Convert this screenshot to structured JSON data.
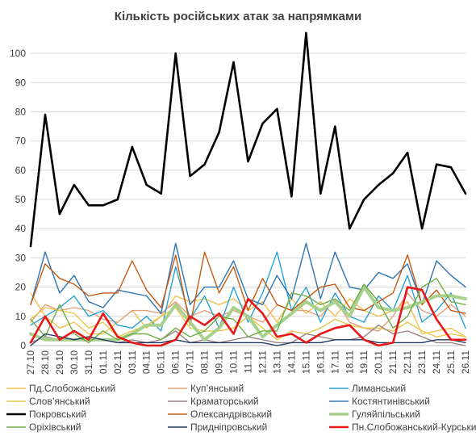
{
  "chart_data": {
    "type": "line",
    "title": "Кількість російських атак за напрямками",
    "xlabel": "",
    "ylabel": "",
    "ylim": [
      0,
      105
    ],
    "yticks": [
      0,
      10,
      20,
      30,
      40,
      50,
      60,
      70,
      80,
      90,
      100
    ],
    "grid": "horizontal",
    "legend_position": "bottom",
    "x": [
      "27.10",
      "28.10",
      "29.10",
      "30.10",
      "31.10",
      "01.11",
      "02.11",
      "03.11",
      "04.11",
      "05.11",
      "06.11",
      "07.11",
      "08.11",
      "09.11",
      "10.11",
      "11.11",
      "12.11",
      "13.11",
      "14.11",
      "15.11",
      "16.11",
      "17.11",
      "18.11",
      "19.11",
      "20.11",
      "21.11",
      "22.11",
      "23.11",
      "24.11",
      "25.11",
      "26.11"
    ],
    "xtick_labels": [
      "27.10",
      "28.10",
      "29.10",
      "30.10",
      "31.10",
      "01.11",
      "02.11",
      "03.11",
      "04.11",
      "05.11",
      "06.11",
      "07.11",
      "08.11",
      "09.11",
      "10.11",
      "11.11",
      "12.11",
      "13.11",
      "14.11",
      "15.11",
      "16.11",
      "17.11",
      "18.11",
      "19.11",
      "20.11",
      "21.11",
      "22.11",
      "23.11",
      "24.11",
      "25.11",
      "26.11"
    ],
    "series": [
      {
        "name": "Пд.Слобожанський",
        "color": "#f2c14e",
        "width": 1.4,
        "values": [
          18,
          10,
          6,
          8,
          4,
          4,
          8,
          12,
          6,
          10,
          17,
          15,
          16,
          14,
          16,
          12,
          15,
          8,
          16,
          11,
          15,
          10,
          16,
          12,
          10,
          12,
          15,
          4,
          5,
          6,
          3
        ]
      },
      {
        "name": "Куп’янський",
        "color": "#e8a07a",
        "width": 1.4,
        "values": [
          8,
          14,
          12,
          13,
          12,
          9,
          8,
          12,
          12,
          11,
          15,
          10,
          12,
          10,
          12,
          10,
          8,
          14,
          12,
          12,
          10,
          16,
          8,
          6,
          5,
          10,
          18,
          12,
          10,
          14,
          10
        ]
      },
      {
        "name": "Лиманський",
        "color": "#27a2d6",
        "width": 1.4,
        "values": [
          7,
          10,
          13,
          17,
          10,
          12,
          7,
          6,
          10,
          5,
          27,
          9,
          17,
          6,
          20,
          8,
          18,
          32,
          12,
          20,
          8,
          18,
          10,
          8,
          17,
          12,
          24,
          8,
          12,
          18,
          6
        ]
      },
      {
        "name": "Слов’янський",
        "color": "#e6c84a",
        "width": 1.4,
        "values": [
          9,
          13,
          12,
          11,
          6,
          8,
          3,
          5,
          7,
          10,
          13,
          6,
          5,
          5,
          6,
          10,
          6,
          2,
          5,
          4,
          6,
          9,
          7,
          6,
          6,
          5,
          8,
          5,
          3,
          4,
          3
        ]
      },
      {
        "name": "Краматорський",
        "color": "#9a8585",
        "width": 1.4,
        "values": [
          1,
          3,
          2,
          5,
          2,
          2,
          1,
          2,
          1,
          2,
          5,
          1,
          2,
          1,
          2,
          3,
          2,
          1,
          1,
          4,
          3,
          2,
          2,
          3,
          7,
          4,
          5,
          3,
          1,
          1,
          0
        ]
      },
      {
        "name": "Костянтинівський",
        "color": "#2e75b6",
        "width": 1.4,
        "values": [
          14,
          32,
          18,
          24,
          15,
          13,
          19,
          18,
          17,
          11,
          35,
          14,
          20,
          20,
          29,
          16,
          14,
          24,
          16,
          35,
          16,
          32,
          20,
          19,
          25,
          23,
          28,
          14,
          29,
          24,
          20
        ]
      },
      {
        "name": "Покровський",
        "color": "#000000",
        "width": 2.6,
        "values": [
          34,
          79,
          45,
          55,
          48,
          48,
          50,
          68,
          55,
          52,
          100,
          58,
          62,
          73,
          97,
          63,
          76,
          81,
          51,
          107,
          52,
          75,
          40,
          50,
          55,
          59,
          66,
          40,
          62,
          61,
          52
        ]
      },
      {
        "name": "Олександрівський",
        "color": "#c55a11",
        "width": 1.4,
        "values": [
          14,
          28,
          23,
          21,
          17,
          18,
          18,
          29,
          19,
          13,
          31,
          7,
          32,
          18,
          27,
          12,
          23,
          14,
          12,
          16,
          20,
          21,
          13,
          12,
          15,
          18,
          31,
          14,
          19,
          12,
          11
        ]
      },
      {
        "name": "Гуляйпільський",
        "color": "#a9d18e",
        "width": 4.0,
        "values": [
          4,
          2,
          2,
          2,
          2,
          2,
          2,
          4,
          7,
          7,
          14,
          8,
          2,
          6,
          13,
          10,
          3,
          7,
          11,
          15,
          12,
          15,
          10,
          20,
          13,
          12,
          13,
          15,
          17,
          17,
          16
        ]
      },
      {
        "name": "Оріхівський",
        "color": "#70ad47",
        "width": 1.4,
        "values": [
          9,
          3,
          14,
          4,
          1,
          5,
          2,
          4,
          4,
          2,
          6,
          3,
          5,
          10,
          9,
          3,
          5,
          5,
          18,
          17,
          14,
          16,
          12,
          21,
          15,
          6,
          10,
          20,
          23,
          15,
          14
        ]
      },
      {
        "name": "Придніпровський",
        "color": "#203864",
        "width": 1.4,
        "values": [
          0,
          4,
          3,
          2,
          3,
          2,
          1,
          1,
          1,
          1,
          2,
          1,
          1,
          1,
          1,
          1,
          1,
          0,
          1,
          1,
          1,
          2,
          2,
          2,
          1,
          1,
          1,
          1,
          2,
          2,
          1
        ]
      },
      {
        "name": "Пн.Слобожанський-Курський",
        "color": "#e81818",
        "width": 2.6,
        "values": [
          1,
          10,
          2,
          5,
          2,
          11,
          3,
          1,
          0,
          0,
          2,
          10,
          7,
          11,
          4,
          16,
          11,
          3,
          4,
          1,
          4,
          6,
          7,
          2,
          0,
          1,
          20,
          19,
          9,
          2,
          2
        ]
      }
    ]
  }
}
